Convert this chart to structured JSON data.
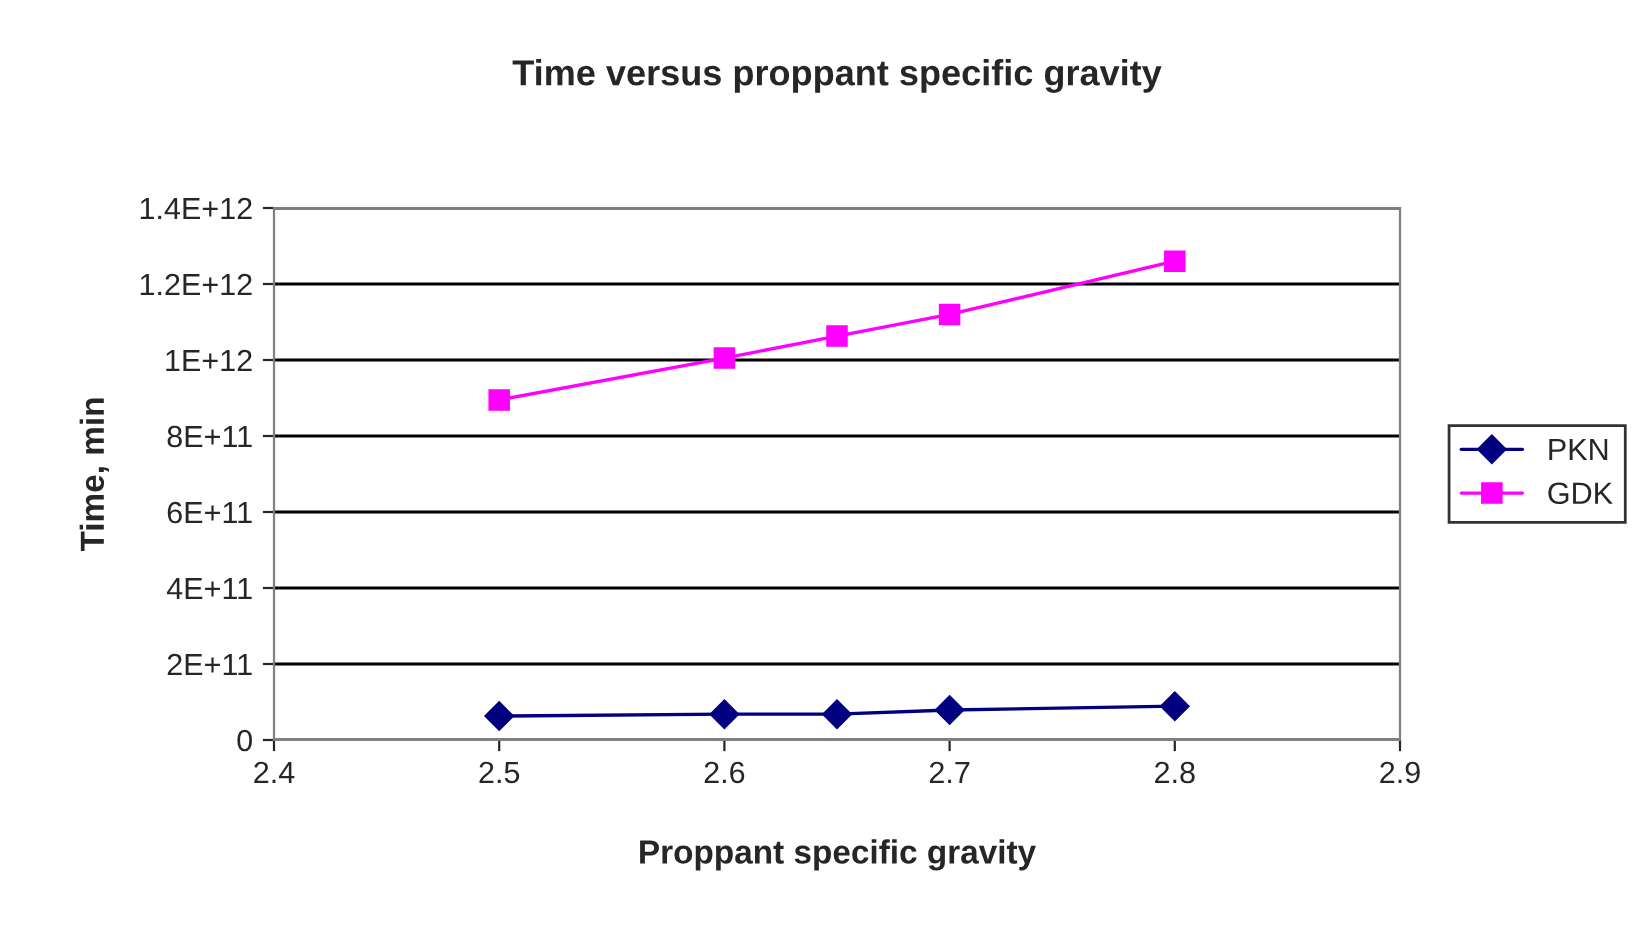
{
  "chart_data": {
    "type": "line",
    "title": "Time versus proppant specific gravity",
    "xlabel": "Proppant specific gravity",
    "ylabel": "Time, min",
    "x": [
      2.5,
      2.6,
      2.65,
      2.7,
      2.8
    ],
    "series": [
      {
        "name": "PKN",
        "color": "#000080",
        "marker": "diamond",
        "values": [
          63000000000,
          68000000000,
          68000000000,
          79000000000,
          89000000000
        ]
      },
      {
        "name": "GDK",
        "color": "#ff00ff",
        "marker": "square",
        "values": [
          895000000000,
          1005000000000,
          1063000000000,
          1120000000000,
          1260000000000
        ]
      }
    ],
    "xlim": [
      2.4,
      2.9
    ],
    "xticks": [
      2.4,
      2.5,
      2.6,
      2.7,
      2.8,
      2.9
    ],
    "ylim": [
      0,
      1400000000000
    ],
    "yticks": [
      {
        "value": 0,
        "label": "0"
      },
      {
        "value": 200000000000,
        "label": "2E+11"
      },
      {
        "value": 400000000000,
        "label": "4E+11"
      },
      {
        "value": 600000000000,
        "label": "6E+11"
      },
      {
        "value": 800000000000,
        "label": "8E+11"
      },
      {
        "value": 1000000000000,
        "label": "1E+12"
      },
      {
        "value": 1200000000000,
        "label": "1.2E+12"
      },
      {
        "value": 1400000000000,
        "label": "1.4E+12"
      }
    ],
    "grid": "y",
    "legend": "right",
    "line_style": "solid"
  }
}
